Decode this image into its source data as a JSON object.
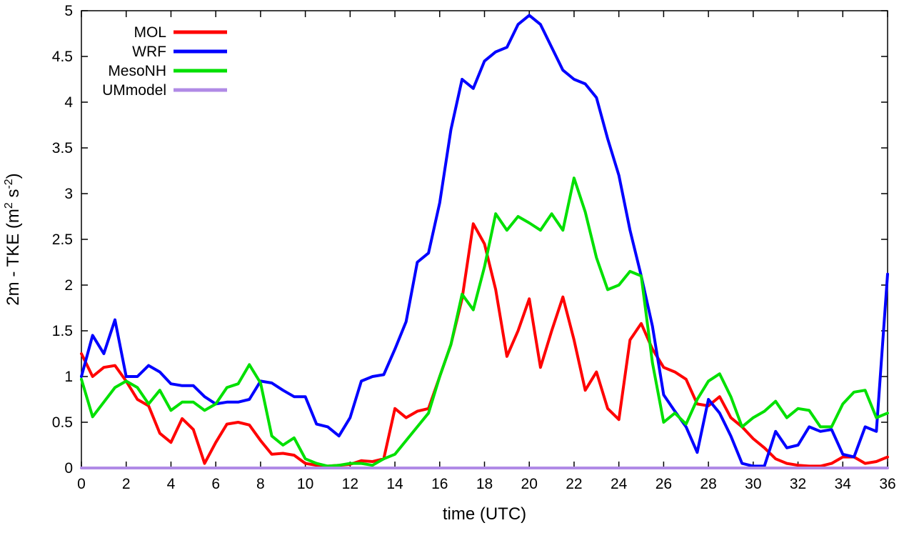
{
  "accent_colors": {
    "mol": "#ff0000",
    "wrf": "#0000ff",
    "mesonh": "#00e000",
    "ummodel": "#b08ae6",
    "axis": "#000000"
  },
  "chart_data": {
    "type": "line",
    "title": "",
    "xlabel": "time (UTC)",
    "ylabel": "2m - TKE (m2 s-2)",
    "ylabel_parts": [
      {
        "t": "2m - TKE (m"
      },
      {
        "t": "2",
        "sup": true
      },
      {
        "t": " s"
      },
      {
        "t": "-2",
        "sup": true
      },
      {
        "t": ")"
      }
    ],
    "xlim": [
      0,
      36
    ],
    "ylim": [
      0,
      5
    ],
    "xtick_step": 2,
    "ytick_step": 0.5,
    "grid": false,
    "legend_position": "top-left",
    "x": [
      0,
      0.5,
      1,
      1.5,
      2,
      2.5,
      3,
      3.5,
      4,
      4.5,
      5,
      5.5,
      6,
      6.5,
      7,
      7.5,
      8,
      8.5,
      9,
      9.5,
      10,
      10.5,
      11,
      11.5,
      12,
      12.5,
      13,
      13.5,
      14,
      14.5,
      15,
      15.5,
      16,
      16.5,
      17,
      17.5,
      18,
      18.5,
      19,
      19.5,
      20,
      20.5,
      21,
      21.5,
      22,
      22.5,
      23,
      23.5,
      24,
      24.5,
      25,
      25.5,
      26,
      26.5,
      27,
      27.5,
      28,
      28.5,
      29,
      29.5,
      30,
      30.5,
      31,
      31.5,
      32,
      32.5,
      33,
      33.5,
      34,
      34.5,
      35,
      35.5,
      36
    ],
    "series": [
      {
        "name": "MOL",
        "color": "#ff0000",
        "values": [
          1.25,
          1.0,
          1.1,
          1.12,
          0.95,
          0.75,
          0.68,
          0.38,
          0.28,
          0.54,
          0.42,
          0.05,
          0.28,
          0.48,
          0.5,
          0.47,
          0.3,
          0.15,
          0.16,
          0.14,
          0.05,
          0.03,
          0.02,
          0.03,
          0.04,
          0.08,
          0.07,
          0.1,
          0.65,
          0.55,
          0.62,
          0.65,
          1.0,
          1.35,
          1.85,
          2.67,
          2.45,
          1.95,
          1.22,
          1.5,
          1.85,
          1.1,
          1.5,
          1.87,
          1.4,
          0.85,
          1.05,
          0.65,
          0.53,
          1.4,
          1.58,
          1.3,
          1.1,
          1.05,
          0.97,
          0.7,
          0.68,
          0.78,
          0.55,
          0.45,
          0.32,
          0.22,
          0.1,
          0.05,
          0.03,
          0.02,
          0.02,
          0.05,
          0.12,
          0.12,
          0.05,
          0.07,
          0.12
        ]
      },
      {
        "name": "WRF",
        "color": "#0000ff",
        "values": [
          1.0,
          1.45,
          1.25,
          1.62,
          1.0,
          1.0,
          1.12,
          1.05,
          0.92,
          0.9,
          0.9,
          0.78,
          0.7,
          0.72,
          0.72,
          0.75,
          0.95,
          0.93,
          0.85,
          0.78,
          0.78,
          0.48,
          0.45,
          0.35,
          0.55,
          0.95,
          1.0,
          1.02,
          1.3,
          1.6,
          2.25,
          2.35,
          2.9,
          3.7,
          4.25,
          4.15,
          4.45,
          4.55,
          4.6,
          4.85,
          4.95,
          4.85,
          4.6,
          4.35,
          4.25,
          4.2,
          4.05,
          3.6,
          3.2,
          2.6,
          2.1,
          1.55,
          0.8,
          0.62,
          0.45,
          0.17,
          0.75,
          0.6,
          0.35,
          0.05,
          0.02,
          0.02,
          0.4,
          0.22,
          0.25,
          0.45,
          0.4,
          0.42,
          0.15,
          0.12,
          0.45,
          0.4,
          2.12
        ]
      },
      {
        "name": "MesoNH",
        "color": "#00e000",
        "values": [
          0.97,
          0.56,
          0.72,
          0.88,
          0.95,
          0.88,
          0.7,
          0.85,
          0.63,
          0.72,
          0.72,
          0.63,
          0.7,
          0.88,
          0.92,
          1.13,
          0.93,
          0.35,
          0.25,
          0.33,
          0.1,
          0.05,
          0.02,
          0.03,
          0.05,
          0.05,
          0.03,
          0.1,
          0.15,
          0.3,
          0.45,
          0.6,
          1.0,
          1.35,
          1.9,
          1.73,
          2.2,
          2.78,
          2.6,
          2.75,
          2.68,
          2.6,
          2.78,
          2.6,
          3.17,
          2.8,
          2.3,
          1.95,
          2.0,
          2.15,
          2.1,
          1.15,
          0.5,
          0.6,
          0.48,
          0.75,
          0.95,
          1.03,
          0.78,
          0.45,
          0.55,
          0.62,
          0.73,
          0.55,
          0.65,
          0.63,
          0.45,
          0.45,
          0.7,
          0.83,
          0.85,
          0.55,
          0.6
        ]
      },
      {
        "name": "UMmodel",
        "color": "#b08ae6",
        "values": [
          0,
          0,
          0,
          0,
          0,
          0,
          0,
          0,
          0,
          0,
          0,
          0,
          0,
          0,
          0,
          0,
          0,
          0,
          0,
          0,
          0,
          0,
          0,
          0,
          0,
          0,
          0,
          0,
          0,
          0,
          0,
          0,
          0,
          0,
          0,
          0,
          0,
          0,
          0,
          0,
          0,
          0,
          0,
          0,
          0,
          0,
          0,
          0,
          0,
          0,
          0,
          0,
          0,
          0,
          0,
          0,
          0,
          0,
          0,
          0,
          0,
          0,
          0,
          0,
          0,
          0,
          0,
          0,
          0,
          0,
          0,
          0,
          0
        ]
      }
    ],
    "xticks": [
      0,
      2,
      4,
      6,
      8,
      10,
      12,
      14,
      16,
      18,
      20,
      22,
      24,
      26,
      28,
      30,
      32,
      34,
      36
    ],
    "yticks": [
      0,
      0.5,
      1,
      1.5,
      2,
      2.5,
      3,
      3.5,
      4,
      4.5,
      5
    ],
    "legend_labels": [
      "MOL",
      "WRF",
      "MesoNH",
      "UMmodel"
    ]
  }
}
